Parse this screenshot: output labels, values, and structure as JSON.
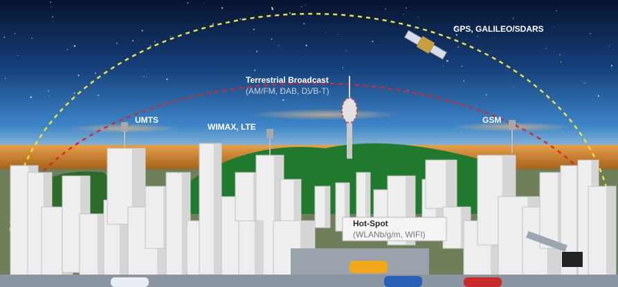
{
  "nodes": [
    {
      "label": "GPS, GALILEO/SDARS"
    },
    {
      "label": "Terrestrial Broadcast",
      "sublabel": "(AM/FM, DAB, DVB-T)"
    },
    {
      "label": "UMTS"
    },
    {
      "label": "WIMAX, LTE"
    },
    {
      "label": "GSM"
    },
    {
      "label": "Hot-Spot",
      "sublabel": "(WLANb/g/m, WIFI)"
    }
  ]
}
